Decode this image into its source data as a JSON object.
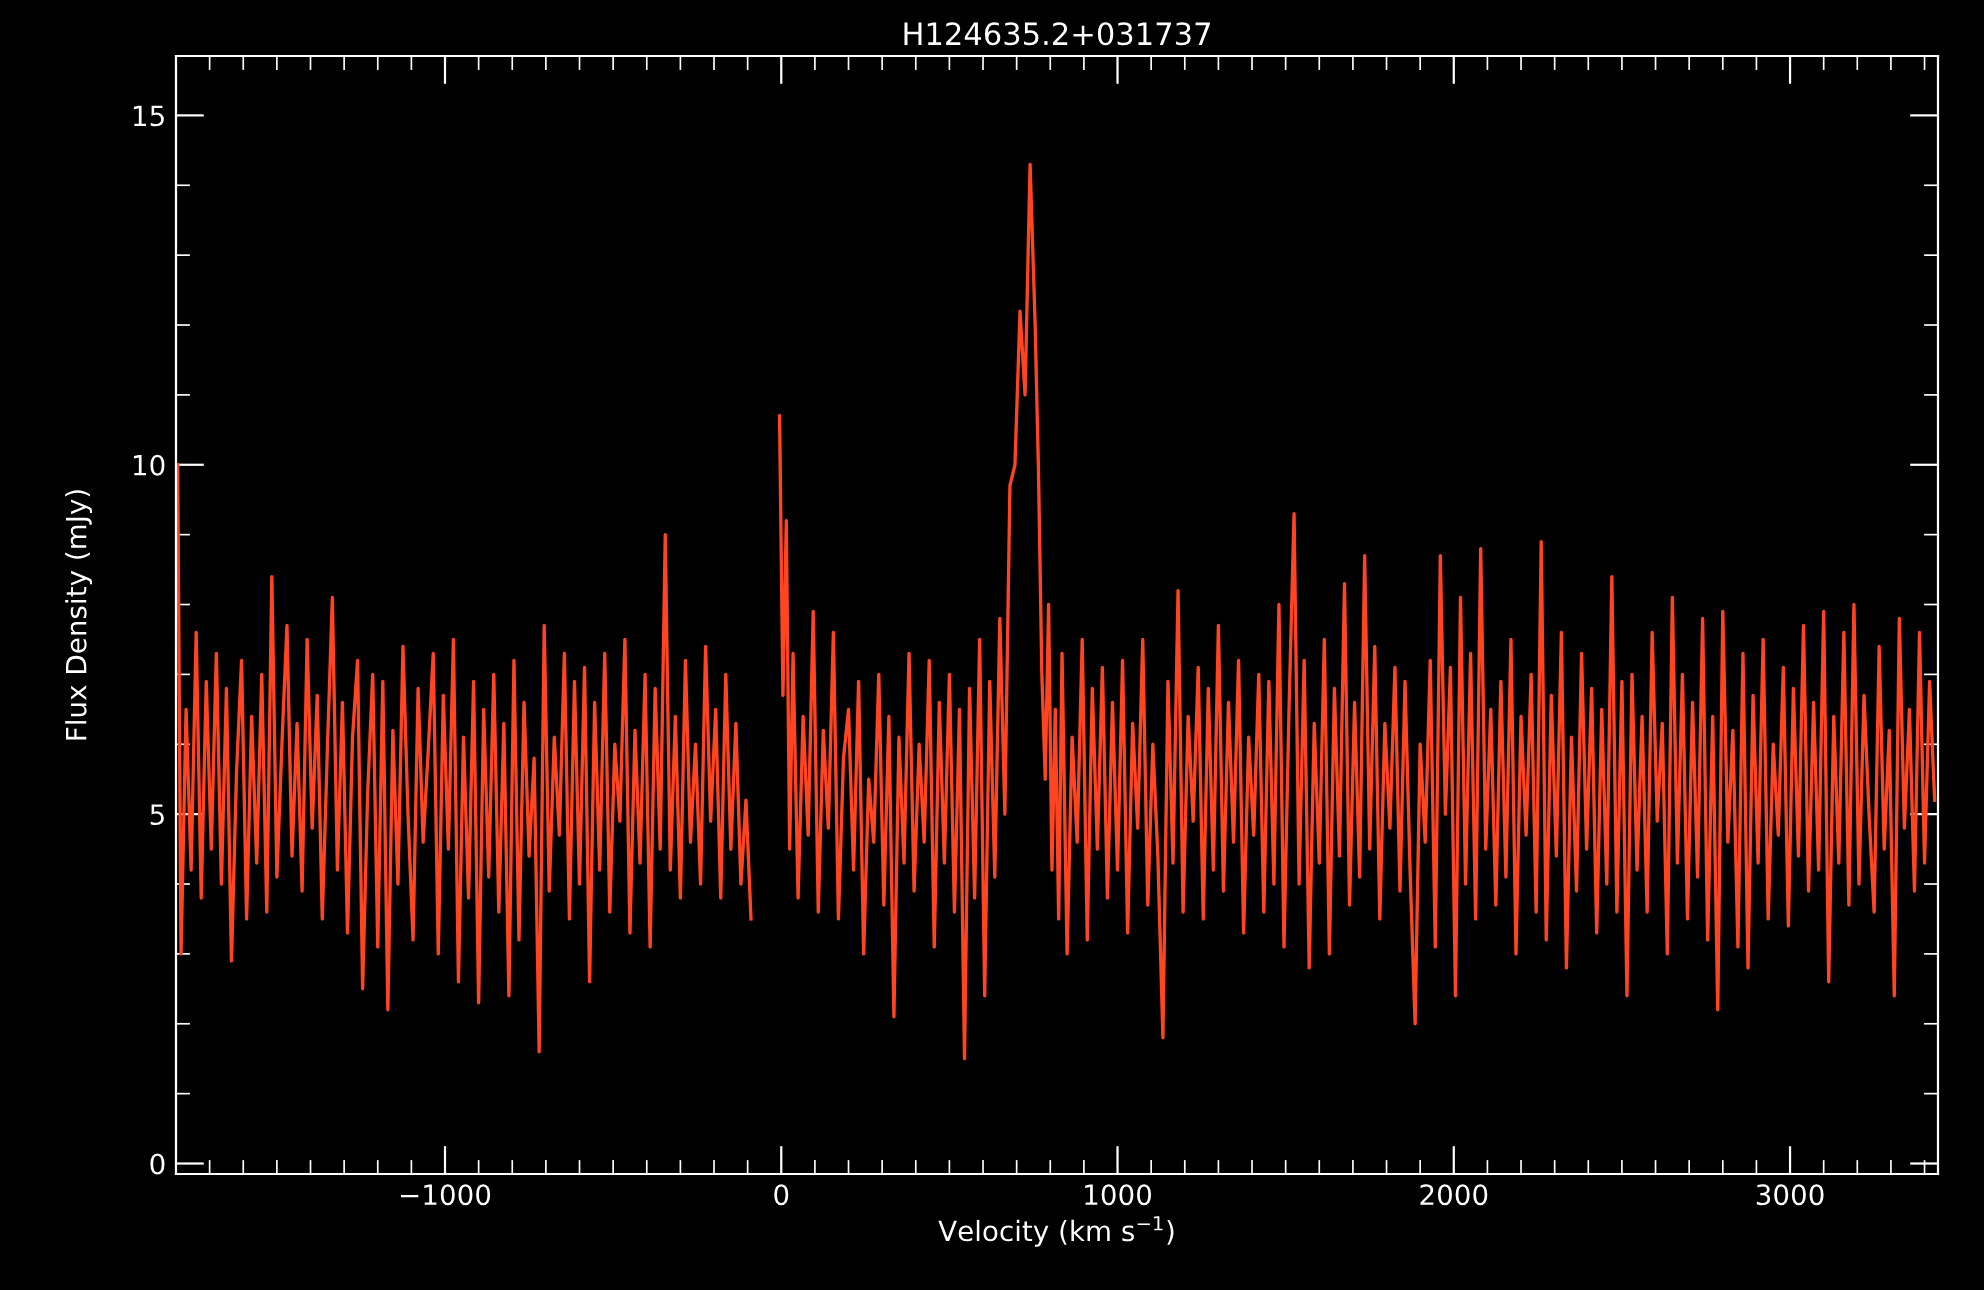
{
  "chart_data": {
    "type": "line",
    "title": "H124635.2+031737",
    "xlabel": "Velocity (km s$^{−1}$)",
    "ylabel": "Flux Density (mJy)",
    "xlim": [
      -1800,
      3440
    ],
    "ylim": [
      -0.15,
      15.85
    ],
    "xticks": [
      -1000,
      0,
      1000,
      2000,
      3000
    ],
    "yticks": [
      0,
      5,
      10,
      15
    ],
    "grid": false,
    "legend": false,
    "marker": "none",
    "line_style": "solid",
    "series": [
      {
        "color": "#ff4422",
        "x": [
          -1795,
          -1785,
          -1770,
          -1755,
          -1740,
          -1725,
          -1710,
          -1695,
          -1680,
          -1665,
          -1650,
          -1635,
          -1620,
          -1605,
          -1590,
          -1575,
          -1560,
          -1545,
          -1530,
          -1515,
          -1500,
          -1485,
          -1470,
          -1455,
          -1440,
          -1425,
          -1410,
          -1395,
          -1380,
          -1365,
          -1350,
          -1335,
          -1320,
          -1305,
          -1290,
          -1275,
          -1260,
          -1245,
          -1230,
          -1215,
          -1200,
          -1185,
          -1170,
          -1155,
          -1140,
          -1125,
          -1110,
          -1095,
          -1080,
          -1065,
          -1050,
          -1035,
          -1020,
          -1005,
          -990,
          -975,
          -960,
          -945,
          -930,
          -915,
          -900,
          -885,
          -870,
          -855,
          -840,
          -825,
          -810,
          -795,
          -780,
          -765,
          -750,
          -735,
          -720,
          -705,
          -690,
          -675,
          -660,
          -645,
          -630,
          -615,
          -600,
          -585,
          -570,
          -555,
          -540,
          -525,
          -510,
          -495,
          -480,
          -465,
          -450,
          -435,
          -420,
          -405,
          -390,
          -375,
          -360,
          -345,
          -330,
          -315,
          -300,
          -285,
          -270,
          -255,
          -240,
          -225,
          -210,
          -195,
          -180,
          -165,
          -150,
          -135,
          -120,
          -105,
          -90,
          -75,
          -65,
          -55,
          -45,
          -35,
          -25,
          -15,
          -5,
          5,
          15,
          25,
          35,
          50,
          65,
          80,
          95,
          110,
          125,
          140,
          155,
          170,
          185,
          200,
          215,
          230,
          245,
          260,
          275,
          290,
          305,
          320,
          335,
          350,
          365,
          380,
          395,
          410,
          425,
          440,
          455,
          470,
          485,
          500,
          515,
          530,
          545,
          560,
          575,
          590,
          605,
          620,
          635,
          650,
          665,
          680,
          695,
          710,
          725,
          740,
          755,
          765,
          775,
          785,
          795,
          805,
          815,
          825,
          835,
          850,
          865,
          880,
          895,
          910,
          925,
          940,
          955,
          970,
          985,
          1000,
          1015,
          1030,
          1045,
          1060,
          1075,
          1090,
          1105,
          1120,
          1135,
          1150,
          1165,
          1180,
          1195,
          1210,
          1225,
          1240,
          1255,
          1270,
          1285,
          1300,
          1315,
          1330,
          1345,
          1360,
          1375,
          1390,
          1405,
          1420,
          1435,
          1450,
          1465,
          1480,
          1495,
          1510,
          1525,
          1540,
          1555,
          1570,
          1585,
          1600,
          1615,
          1630,
          1645,
          1660,
          1675,
          1690,
          1705,
          1720,
          1735,
          1750,
          1765,
          1780,
          1795,
          1810,
          1825,
          1840,
          1855,
          1870,
          1885,
          1900,
          1915,
          1930,
          1945,
          1960,
          1975,
          1990,
          2005,
          2020,
          2035,
          2050,
          2065,
          2080,
          2095,
          2110,
          2125,
          2140,
          2155,
          2170,
          2185,
          2200,
          2215,
          2230,
          2245,
          2260,
          2275,
          2290,
          2305,
          2320,
          2335,
          2350,
          2365,
          2380,
          2395,
          2410,
          2425,
          2440,
          2455,
          2470,
          2485,
          2500,
          2515,
          2530,
          2545,
          2560,
          2575,
          2590,
          2605,
          2620,
          2635,
          2650,
          2665,
          2680,
          2695,
          2710,
          2725,
          2740,
          2755,
          2770,
          2785,
          2800,
          2815,
          2830,
          2845,
          2860,
          2875,
          2890,
          2905,
          2920,
          2935,
          2950,
          2965,
          2980,
          2995,
          3010,
          3025,
          3040,
          3055,
          3070,
          3085,
          3100,
          3115,
          3130,
          3145,
          3160,
          3175,
          3190,
          3205,
          3220,
          3235,
          3250,
          3265,
          3280,
          3295,
          3310,
          3325,
          3340,
          3355,
          3370,
          3385,
          3400,
          3415,
          3430
        ],
        "values": [
          10.0,
          3.0,
          6.5,
          4.2,
          7.6,
          3.8,
          6.9,
          4.5,
          7.3,
          4.0,
          6.8,
          2.9,
          5.6,
          7.2,
          3.5,
          6.4,
          4.3,
          7.0,
          3.6,
          8.4,
          4.1,
          6.0,
          7.7,
          4.4,
          6.3,
          3.9,
          7.5,
          4.8,
          6.7,
          3.5,
          5.9,
          8.1,
          4.2,
          6.6,
          3.3,
          6.1,
          7.2,
          2.5,
          5.3,
          7.0,
          3.1,
          6.9,
          2.2,
          6.2,
          4.0,
          7.4,
          5.0,
          3.2,
          6.8,
          4.6,
          5.9,
          7.3,
          3.0,
          6.7,
          4.5,
          7.5,
          2.6,
          6.1,
          3.8,
          6.9,
          2.3,
          6.5,
          4.1,
          7.0,
          3.6,
          6.3,
          2.4,
          7.2,
          3.2,
          6.6,
          4.4,
          5.8,
          1.6,
          7.7,
          3.9,
          6.1,
          4.7,
          7.3,
          3.5,
          6.9,
          4.0,
          7.1,
          2.6,
          6.6,
          4.2,
          7.3,
          3.6,
          6.0,
          4.9,
          7.5,
          3.3,
          6.2,
          4.3,
          7.0,
          3.1,
          6.8,
          4.5,
          9.0,
          4.2,
          6.4,
          3.8,
          7.2,
          4.6,
          6.0,
          4.0,
          7.4,
          4.9,
          6.5,
          3.8,
          7.0,
          4.5,
          6.3,
          4.0,
          5.2,
          3.5,
          null,
          null,
          null,
          null,
          null,
          null,
          null,
          10.7,
          6.7,
          9.2,
          4.5,
          7.3,
          3.8,
          6.4,
          4.7,
          7.9,
          3.6,
          6.2,
          4.8,
          7.6,
          3.5,
          5.8,
          6.5,
          4.2,
          6.9,
          3.0,
          5.5,
          4.6,
          7.0,
          3.7,
          6.4,
          2.1,
          6.1,
          4.3,
          7.3,
          3.9,
          6.0,
          4.6,
          7.2,
          3.1,
          6.6,
          4.3,
          7.0,
          3.6,
          6.5,
          1.5,
          6.8,
          3.8,
          7.5,
          2.4,
          6.9,
          4.1,
          7.8,
          5.0,
          9.7,
          10.0,
          12.2,
          11.0,
          14.3,
          12.0,
          9.9,
          7.0,
          5.5,
          8.0,
          4.2,
          6.5,
          3.5,
          7.3,
          3.0,
          6.1,
          4.6,
          7.5,
          3.2,
          6.8,
          4.5,
          7.1,
          3.8,
          6.6,
          4.2,
          7.2,
          3.3,
          6.3,
          4.8,
          7.5,
          3.7,
          6.0,
          4.4,
          1.8,
          6.9,
          4.3,
          8.2,
          3.6,
          6.4,
          4.9,
          7.1,
          3.5,
          6.8,
          4.2,
          7.7,
          3.9,
          6.6,
          4.6,
          7.2,
          3.3,
          6.1,
          4.7,
          7.0,
          3.6,
          6.9,
          4.0,
          8.0,
          3.1,
          6.5,
          9.3,
          4.0,
          7.2,
          2.8,
          6.3,
          4.3,
          7.5,
          3.0,
          6.8,
          4.4,
          8.3,
          3.7,
          6.6,
          4.1,
          8.7,
          4.5,
          7.4,
          3.5,
          6.3,
          4.8,
          7.1,
          3.9,
          6.9,
          4.2,
          2.0,
          6.0,
          4.6,
          7.2,
          3.1,
          8.7,
          5.0,
          7.1,
          2.4,
          8.1,
          4.0,
          7.3,
          3.5,
          8.8,
          4.5,
          6.5,
          3.7,
          6.9,
          4.1,
          7.5,
          3.0,
          6.4,
          4.7,
          7.0,
          3.6,
          8.9,
          3.2,
          6.7,
          4.4,
          7.6,
          2.8,
          6.1,
          3.9,
          7.3,
          4.5,
          6.8,
          3.3,
          6.5,
          4.0,
          8.4,
          3.6,
          6.9,
          2.4,
          7.0,
          4.2,
          6.4,
          3.6,
          7.6,
          4.9,
          6.3,
          3.0,
          8.1,
          4.3,
          7.0,
          3.5,
          6.6,
          4.1,
          7.8,
          3.2,
          6.4,
          2.2,
          7.9,
          4.6,
          6.2,
          3.1,
          7.3,
          2.8,
          6.7,
          4.3,
          7.5,
          3.5,
          6.0,
          4.7,
          7.1,
          3.4,
          6.8,
          4.4,
          7.7,
          3.9,
          6.6,
          4.2,
          7.9,
          2.6,
          6.4,
          4.3,
          7.6,
          3.7,
          8.0,
          4.0,
          6.7,
          5.0,
          3.6,
          7.4,
          4.5,
          6.2,
          2.4,
          7.8,
          4.8,
          6.5,
          3.9,
          7.6,
          4.3,
          6.9,
          5.2
        ]
      }
    ]
  }
}
